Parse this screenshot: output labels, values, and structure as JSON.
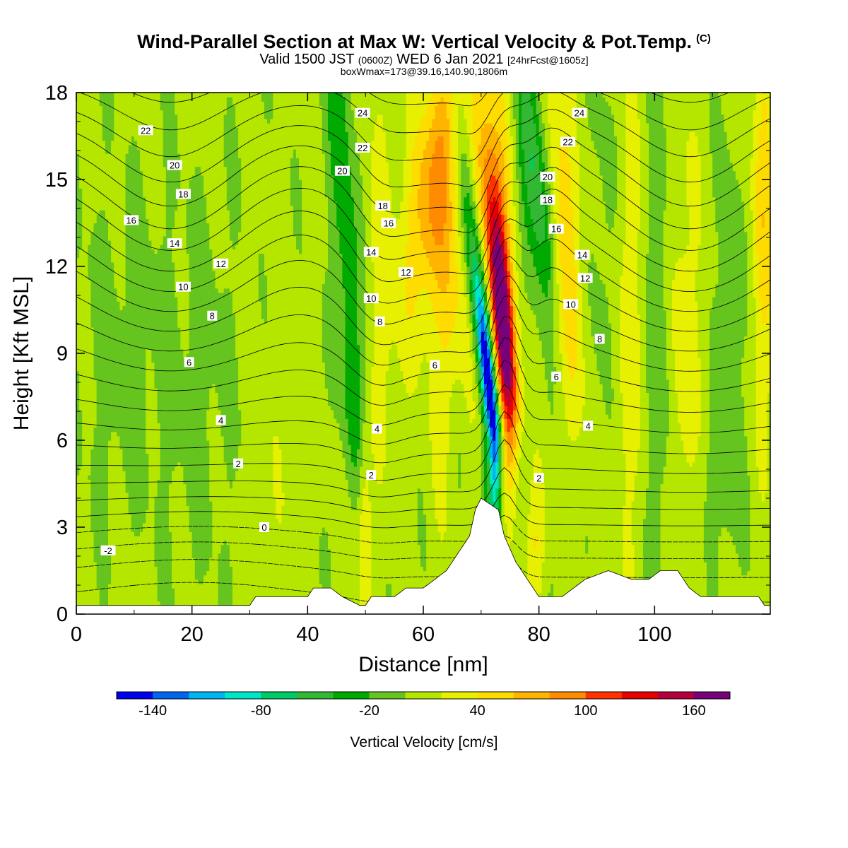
{
  "header": {
    "title": "Wind-Parallel Section at Max W: Vertical Velocity & Pot.Temp.",
    "copyright": "(C)",
    "valid_pre": "Valid 1500 JST",
    "valid_zulu": "(0600Z)",
    "valid_date": "WED 6 Jan 2021",
    "valid_fcst": "[24hrFcst@1605z]",
    "boxinfo": "boxWmax=173@39.16,140.90,1806m"
  },
  "chart_data": {
    "type": "heatmap",
    "title": "Wind-Parallel Section at Max W: Vertical Velocity & Pot.Temp.",
    "xlabel": "Distance [nm]",
    "ylabel": "Height [Kft MSL]",
    "xlim": [
      0,
      120
    ],
    "ylim": [
      0,
      18
    ],
    "x_ticks": [
      "0",
      "20",
      "40",
      "60",
      "80",
      "100"
    ],
    "y_ticks": [
      "0",
      "3",
      "6",
      "9",
      "12",
      "15",
      "18"
    ],
    "colorbar": {
      "label": "Vertical Velocity [cm/s]",
      "tick_labels": [
        "-140",
        "-80",
        "-20",
        "40",
        "100",
        "160"
      ],
      "levels": [
        -160,
        -140,
        -120,
        -100,
        -80,
        -60,
        -40,
        -20,
        0,
        20,
        40,
        60,
        80,
        100,
        120,
        140,
        160,
        180
      ],
      "colors": [
        "#0000ee",
        "#0066ee",
        "#00b4f0",
        "#00e6c8",
        "#00cc66",
        "#33b833",
        "#00aa00",
        "#66c41e",
        "#b4e600",
        "#e6f000",
        "#ffdc00",
        "#ffb400",
        "#ff8c00",
        "#ff3200",
        "#e60000",
        "#b4003c",
        "#780078"
      ]
    },
    "terrain_kft": [
      [
        0,
        0.3
      ],
      [
        10,
        0.3
      ],
      [
        20,
        0.3
      ],
      [
        30,
        0.3
      ],
      [
        31,
        0.6
      ],
      [
        40,
        0.6
      ],
      [
        41,
        0.9
      ],
      [
        44,
        0.9
      ],
      [
        46,
        0.6
      ],
      [
        49,
        0.3
      ],
      [
        50,
        0.3
      ],
      [
        51,
        0.6
      ],
      [
        55,
        0.6
      ],
      [
        57,
        0.9
      ],
      [
        60,
        0.9
      ],
      [
        62,
        1.2
      ],
      [
        64,
        1.5
      ],
      [
        66,
        2.1
      ],
      [
        68,
        2.7
      ],
      [
        69,
        3.6
      ],
      [
        70,
        4.0
      ],
      [
        73,
        3.6
      ],
      [
        74,
        2.7
      ],
      [
        76,
        1.8
      ],
      [
        78,
        1.2
      ],
      [
        80,
        0.6
      ],
      [
        84,
        0.6
      ],
      [
        86,
        0.9
      ],
      [
        88,
        1.2
      ],
      [
        92,
        1.5
      ],
      [
        96,
        1.2
      ],
      [
        99,
        1.2
      ],
      [
        101,
        1.5
      ],
      [
        104,
        1.5
      ],
      [
        106,
        0.9
      ],
      [
        108,
        0.6
      ],
      [
        118,
        0.6
      ],
      [
        119,
        0.3
      ],
      [
        120,
        0.3
      ]
    ],
    "w_features": [
      {
        "x": 75,
        "z": 9.5,
        "value": 173
      },
      {
        "x": 72.5,
        "z": 7.5,
        "value": -130
      },
      {
        "x": 48,
        "z": 12,
        "value": -30
      },
      {
        "x": 62,
        "z": 15,
        "value": 60
      },
      {
        "x": 82,
        "z": 15,
        "value": -70
      },
      {
        "x": 86,
        "z": 13,
        "value": 50
      },
      {
        "x": 118,
        "z": 16,
        "value": 40
      },
      {
        "x": 5,
        "z": 7,
        "value": -20
      }
    ],
    "theta_contour_labels": [
      {
        "label": "22",
        "x": 12,
        "z": 16.7
      },
      {
        "label": "20",
        "x": 17,
        "z": 15.5
      },
      {
        "label": "18",
        "x": 18.5,
        "z": 14.5
      },
      {
        "label": "16",
        "x": 9.5,
        "z": 13.6
      },
      {
        "label": "14",
        "x": 17,
        "z": 12.8
      },
      {
        "label": "12",
        "x": 25,
        "z": 12.1
      },
      {
        "label": "10",
        "x": 18.5,
        "z": 11.3
      },
      {
        "label": "8",
        "x": 23.5,
        "z": 10.3
      },
      {
        "label": "6",
        "x": 19.5,
        "z": 8.7
      },
      {
        "label": "4",
        "x": 25,
        "z": 6.7
      },
      {
        "label": "2",
        "x": 28,
        "z": 5.2
      },
      {
        "label": "0",
        "x": 32.5,
        "z": 3.0
      },
      {
        "label": "-2",
        "x": 5.5,
        "z": 2.2
      },
      {
        "label": "24",
        "x": 49.5,
        "z": 17.3
      },
      {
        "label": "22",
        "x": 49.5,
        "z": 16.1
      },
      {
        "label": "20",
        "x": 46,
        "z": 15.3
      },
      {
        "label": "18",
        "x": 53,
        "z": 14.1
      },
      {
        "label": "16",
        "x": 54,
        "z": 13.5
      },
      {
        "label": "14",
        "x": 51,
        "z": 12.5
      },
      {
        "label": "12",
        "x": 57,
        "z": 11.8
      },
      {
        "label": "10",
        "x": 51,
        "z": 10.9
      },
      {
        "label": "8",
        "x": 52.5,
        "z": 10.1
      },
      {
        "label": "6",
        "x": 62,
        "z": 8.6
      },
      {
        "label": "4",
        "x": 52,
        "z": 6.4
      },
      {
        "label": "2",
        "x": 51,
        "z": 4.8
      },
      {
        "label": "24",
        "x": 87,
        "z": 17.3
      },
      {
        "label": "22",
        "x": 85,
        "z": 16.3
      },
      {
        "label": "20",
        "x": 81.5,
        "z": 15.1
      },
      {
        "label": "18",
        "x": 81.5,
        "z": 14.3
      },
      {
        "label": "16",
        "x": 83,
        "z": 13.3
      },
      {
        "label": "14",
        "x": 87.5,
        "z": 12.4
      },
      {
        "label": "12",
        "x": 88,
        "z": 11.6
      },
      {
        "label": "10",
        "x": 85.5,
        "z": 10.7
      },
      {
        "label": "8",
        "x": 90.5,
        "z": 9.5
      },
      {
        "label": "6",
        "x": 83,
        "z": 8.2
      },
      {
        "label": "4",
        "x": 88.5,
        "z": 6.5
      },
      {
        "label": "2",
        "x": 80,
        "z": 4.7
      }
    ],
    "grid": false
  }
}
